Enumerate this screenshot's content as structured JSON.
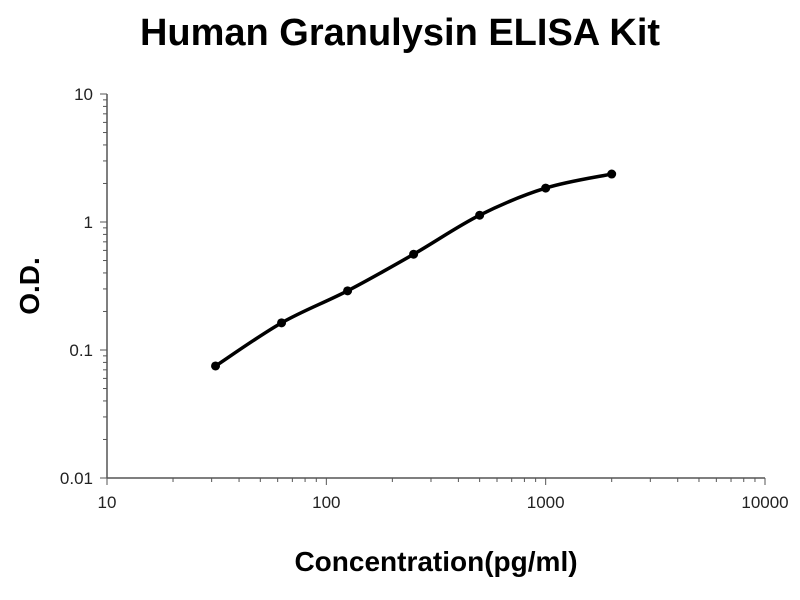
{
  "chart_data": {
    "type": "scatter",
    "title": "Human Granulysin ELISA Kit",
    "xlabel": "Concentration(pg/ml)",
    "ylabel": "O.D.",
    "x_scale": "log",
    "y_scale": "log",
    "xlim": [
      10,
      10000
    ],
    "ylim": [
      0.01,
      10
    ],
    "x_ticks": [
      "10",
      "100",
      "1000",
      "10000"
    ],
    "y_ticks": [
      "0.01",
      "0.1",
      "1",
      "10"
    ],
    "grid": false,
    "fit_line": true,
    "color": "#000000",
    "series": [
      {
        "x": [
          31.25,
          62.5,
          125,
          250,
          500,
          1000,
          2000
        ],
        "y": [
          0.075,
          0.163,
          0.29,
          0.56,
          1.13,
          1.84,
          2.37
        ]
      }
    ]
  }
}
